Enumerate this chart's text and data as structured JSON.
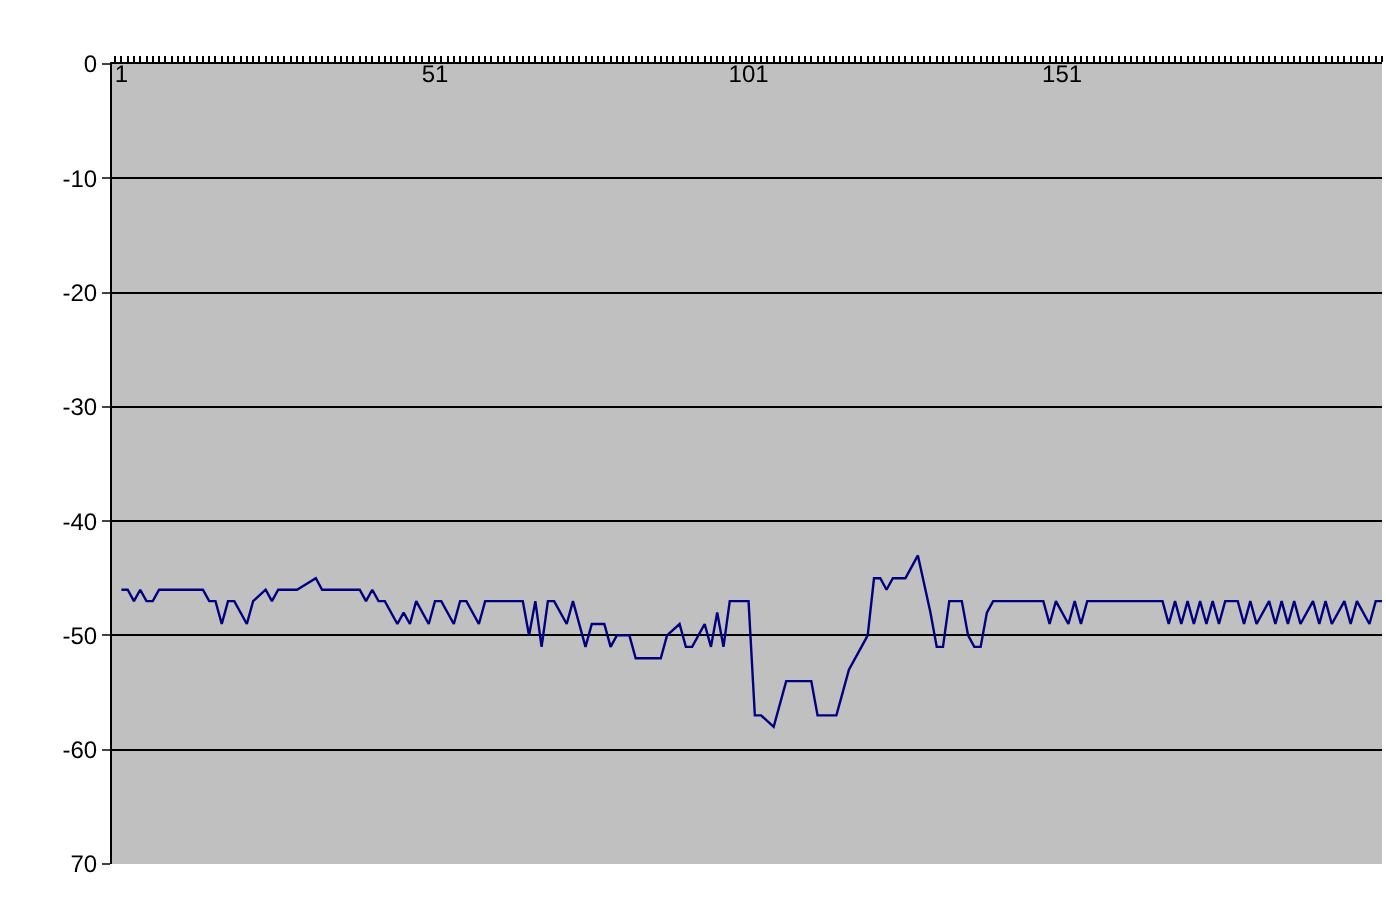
{
  "chart_data": {
    "type": "line",
    "x": [
      1,
      2,
      3,
      4,
      5,
      6,
      7,
      14,
      15,
      16,
      17,
      18,
      19,
      21,
      22,
      24,
      25,
      26,
      29,
      32,
      33,
      39,
      40,
      41,
      42,
      43,
      45,
      46,
      47,
      48,
      50,
      51,
      52,
      54,
      55,
      56,
      58,
      59,
      65,
      66,
      67,
      68,
      69,
      70,
      72,
      73,
      74,
      75,
      76,
      78,
      79,
      80,
      82,
      83,
      85,
      87,
      88,
      90,
      91,
      92,
      94,
      95,
      96,
      97,
      98,
      101,
      102,
      103,
      105,
      107,
      111,
      112,
      115,
      116,
      117,
      119,
      120,
      121,
      122,
      123,
      124,
      126,
      127,
      128,
      130,
      131,
      132,
      133,
      135,
      136,
      137,
      138,
      139,
      140,
      148,
      149,
      150,
      152,
      153,
      154,
      155,
      157,
      167,
      168,
      169,
      170,
      171,
      172,
      173,
      174,
      175,
      176,
      177,
      179,
      180,
      181,
      182,
      184,
      185,
      186,
      187,
      188,
      189,
      191,
      192,
      193,
      194,
      196,
      197,
      198,
      200,
      201,
      202
    ],
    "series": [
      {
        "color": "#000080",
        "values": [
          -46,
          -46,
          -47,
          -46,
          -47,
          -47,
          -46,
          -46,
          -47,
          -47,
          -49,
          -47,
          -47,
          -49,
          -47,
          -46,
          -47,
          -46,
          -46,
          -45,
          -46,
          -46,
          -47,
          -46,
          -47,
          -47,
          -49,
          -48,
          -49,
          -47,
          -49,
          -47,
          -47,
          -49,
          -47,
          -47,
          -49,
          -47,
          -47,
          -50,
          -47,
          -51,
          -47,
          -47,
          -49,
          -47,
          -49,
          -51,
          -49,
          -49,
          -51,
          -50,
          -50,
          -52,
          -52,
          -52,
          -50,
          -49,
          -51,
          -51,
          -49,
          -51,
          -48,
          -51,
          -47,
          -47,
          -57,
          -57,
          -58,
          -54,
          -54,
          -57,
          -57,
          -55,
          -53,
          -51,
          -50,
          -45,
          -45,
          -46,
          -45,
          -45,
          -44,
          -43,
          -48,
          -51,
          -51,
          -47,
          -47,
          -50,
          -51,
          -51,
          -48,
          -47,
          -47,
          -49,
          -47,
          -49,
          -47,
          -49,
          -47,
          -47,
          -47,
          -49,
          -47,
          -49,
          -47,
          -49,
          -47,
          -49,
          -47,
          -49,
          -47,
          -47,
          -49,
          -47,
          -49,
          -47,
          -49,
          -47,
          -49,
          -47,
          -49,
          -47,
          -49,
          -47,
          -49,
          -47,
          -49,
          -47,
          -49,
          -47,
          -47
        ]
      }
    ],
    "xlim": [
      -0.5,
      202
    ],
    "xticks": [
      1,
      51,
      101,
      151
    ],
    "ylim": [
      -70,
      0
    ],
    "yticks": [
      0,
      -10,
      -20,
      -30,
      -40,
      -50,
      -60,
      {
        "value": -70,
        "label": "70"
      }
    ],
    "grid": "y",
    "legend": false,
    "marker": "none",
    "line_style": "solid"
  }
}
